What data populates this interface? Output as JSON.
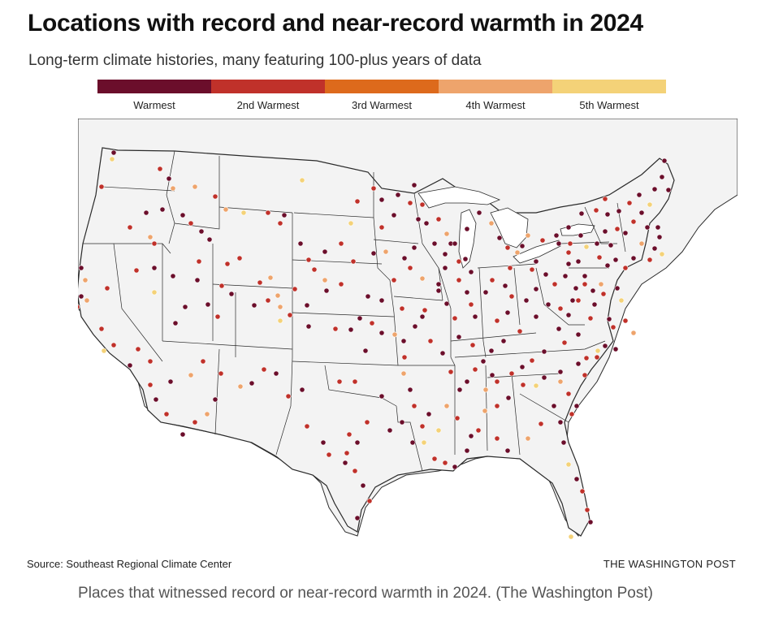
{
  "header": {
    "title": "Locations with record and near-record warmth in 2024",
    "subtitle": "Long-term climate histories, many featuring 100-plus years of data"
  },
  "legend": {
    "items": [
      {
        "label": "Warmest",
        "color": "#6b0e2b"
      },
      {
        "label": "2nd Warmest",
        "color": "#c0312a"
      },
      {
        "label": "3rd Warmest",
        "color": "#dd6a1c"
      },
      {
        "label": "4th Warmest",
        "color": "#eea46c"
      },
      {
        "label": "5th Warmest",
        "color": "#f4d278"
      }
    ]
  },
  "map": {
    "land_color": "#f3f3f3",
    "border_color": "#2a2a2a",
    "water_color": "#ffffff"
  },
  "footer": {
    "source": "Source: Southeast Regional Climate Center",
    "credit": "THE WASHINGTON POST",
    "caption": "Places that witnessed record or near-record warmth in 2024. (The Washington Post)"
  }
}
